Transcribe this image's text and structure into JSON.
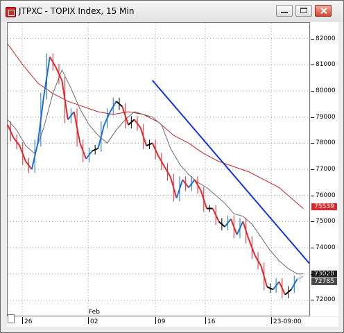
{
  "window": {
    "title": "JTPXC - TOPIX Index, 15 Min",
    "icon": "chart-window-icon"
  },
  "colors": {
    "bull": "#1a6fd1",
    "bull_light": "#a9c9e6",
    "bear": "#e3262c",
    "bear_light": "#f4a3c4",
    "neutral": "#000000",
    "ma_fast": "#6b6b6b",
    "ma_slow": "#c42020",
    "trendline": "#1030e0"
  },
  "axes": {
    "y_labels": [
      "82000",
      "81000",
      "80000",
      "79000",
      "78000",
      "77000",
      "76000",
      "75000",
      "74000",
      "73000",
      "72000"
    ],
    "x_labels": [
      "26",
      "02",
      "09",
      "16",
      "23-09:00"
    ],
    "month_label": "Feb",
    "price_tags": [
      {
        "label": "75539",
        "style": "red"
      },
      {
        "label": "73028",
        "style": "dark"
      },
      {
        "label": "72785",
        "style": "gray"
      }
    ]
  },
  "chart_data": {
    "type": "line",
    "title": "JTPXC - TOPIX Index, 15 Min",
    "ylim": [
      71400,
      82600
    ],
    "y_ticks": [
      72000,
      73000,
      74000,
      75000,
      76000,
      77000,
      78000,
      79000,
      80000,
      81000,
      82000
    ],
    "x_range": [
      0,
      100
    ],
    "grid": true,
    "series": [
      {
        "x": [
          0,
          2,
          4,
          6,
          8,
          10,
          12,
          14,
          16,
          18,
          20,
          22,
          24,
          26,
          28,
          30,
          32,
          34,
          36,
          38,
          40,
          42,
          44,
          46,
          48,
          50,
          52,
          54,
          56,
          58,
          60,
          62,
          64,
          66,
          68,
          70,
          72,
          74,
          76,
          78,
          80,
          82,
          84,
          86,
          88,
          90,
          92,
          94,
          96,
          98
        ],
        "values": [
          78700,
          78200,
          77900,
          77300,
          77000,
          78000,
          79800,
          81300,
          80900,
          80400,
          78900,
          79200,
          78000,
          77400,
          77700,
          77800,
          78700,
          79200,
          79600,
          79400,
          78700,
          78900,
          78600,
          77900,
          78000,
          77500,
          77100,
          76700,
          75900,
          76600,
          76300,
          76600,
          76200,
          75500,
          75500,
          75000,
          74800,
          75100,
          74500,
          75000,
          74300,
          73700,
          73300,
          72500,
          72400,
          72700,
          72200,
          72400,
          72800,
          72900
        ]
      },
      {
        "x": [
          0,
          3,
          6,
          9,
          12,
          15,
          18,
          21,
          24,
          27,
          30,
          33,
          36,
          39,
          42,
          45,
          48,
          51,
          54,
          57,
          60,
          63,
          66,
          69,
          72,
          75,
          78,
          81,
          84,
          87,
          90,
          93,
          96,
          98
        ],
        "values": [
          78900,
          78500,
          77900,
          77600,
          78600,
          79900,
          80800,
          80100,
          79300,
          78700,
          78300,
          78000,
          78500,
          78900,
          79200,
          79100,
          79000,
          78700,
          77800,
          77200,
          76800,
          76500,
          76300,
          76000,
          75700,
          75300,
          75200,
          74900,
          74400,
          73900,
          73500,
          73200,
          73000,
          73000
        ]
      },
      {
        "x": [
          0,
          5,
          10,
          15,
          20,
          25,
          30,
          35,
          40,
          45,
          50,
          55,
          60,
          65,
          70,
          75,
          80,
          85,
          90,
          95,
          98
        ],
        "values": [
          81800,
          81000,
          80300,
          79900,
          79600,
          79400,
          79200,
          79100,
          79200,
          79100,
          78800,
          78300,
          78000,
          77600,
          77300,
          77100,
          76900,
          76600,
          76300,
          75800,
          75500
        ]
      },
      {
        "x": [
          48,
          100
        ],
        "values": [
          80400,
          73400
        ]
      }
    ]
  }
}
